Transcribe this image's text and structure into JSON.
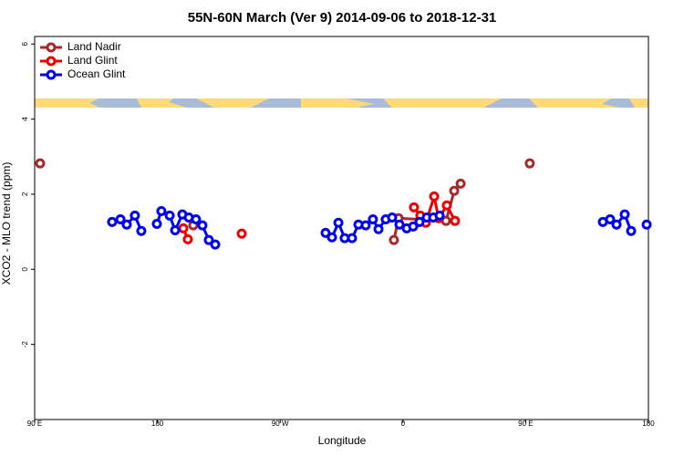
{
  "chart_data": {
    "type": "line",
    "title": "55N-60N March (Ver 9)   2014-09-06 to 2018-12-31",
    "x_label": "Longitude",
    "y_label": "XCO2 - MLO trend (ppm)",
    "xlim": [
      90,
      540
    ],
    "ylim": [
      -4,
      6.2
    ],
    "xticks": [
      {
        "value": 90,
        "label": "90 E"
      },
      180,
      {
        "value": 270,
        "label": "90 W"
      },
      {
        "value": 360,
        "label": "0"
      },
      {
        "value": 450,
        "label": "90 E"
      },
      {
        "value": 540,
        "label": "180"
      }
    ],
    "yticks": [
      -2,
      0,
      2,
      4,
      6
    ],
    "legend": "top-left",
    "series": [
      {
        "name": "Land Nadir",
        "color": "#a52a2a",
        "x": [
          94,
          null,
          206.3,
          null,
          353.4,
          356.8,
          391.6,
          397.6,
          402.3,
          null,
          453
        ],
        "values": [
          2.82,
          null,
          1.17,
          null,
          0.78,
          1.36,
          1.29,
          2.09,
          2.28,
          null,
          2.82
        ]
      },
      {
        "name": "Land Glint",
        "color": "#ee0000",
        "x": [
          199,
          202.3,
          null,
          241.8,
          null,
          368.1,
          372.8,
          376.8,
          382.9,
          386.2,
          392.2,
          398.2
        ],
        "values": [
          1.09,
          0.8,
          null,
          0.95,
          null,
          1.65,
          1.43,
          1.24,
          1.94,
          1.36,
          1.7,
          1.29
        ]
      },
      {
        "name": "Ocean Glint",
        "color": "#0000ee",
        "x": [
          146.8,
          152.9,
          157.5,
          163.5,
          168.2,
          null,
          179.6,
          182.9,
          189,
          193,
          198.3,
          203,
          208.3,
          213,
          217.7,
          222.4,
          null,
          303.3,
          308,
          312.7,
          317.3,
          322.7,
          327.4,
          332.7,
          338,
          342.1,
          347.4,
          352.1,
          357.5,
          362.8,
          367.5,
          372.2,
          377.5,
          382.2,
          386.9,
          null,
          506.6,
          511.9,
          516.6,
          522.6,
          527.3,
          null,
          538.7
        ],
        "values": [
          1.26,
          1.33,
          1.19,
          1.43,
          1.02,
          null,
          1.21,
          1.55,
          1.43,
          1.04,
          1.46,
          1.38,
          1.33,
          1.17,
          0.78,
          0.66,
          null,
          0.97,
          0.85,
          1.24,
          0.83,
          0.83,
          1.19,
          1.17,
          1.33,
          1.07,
          1.33,
          1.38,
          1.19,
          1.09,
          1.14,
          1.26,
          1.38,
          1.38,
          1.43,
          null,
          1.26,
          1.33,
          1.19,
          1.46,
          1.02,
          null,
          1.19
        ]
      }
    ]
  }
}
